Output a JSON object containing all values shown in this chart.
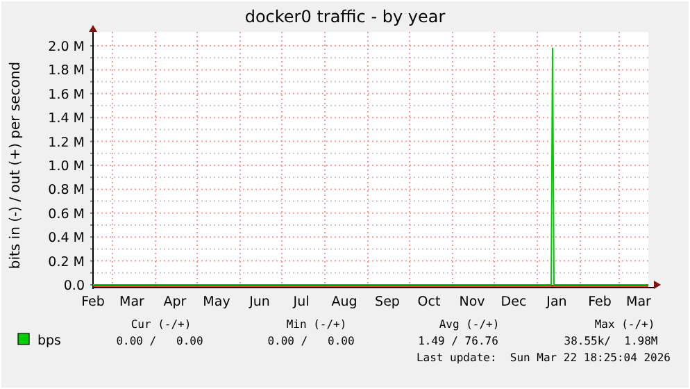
{
  "chart_data": {
    "type": "line",
    "title": "docker0 traffic - by year",
    "ylabel": "bits in (-) / out (+) per second",
    "x": [
      "2025-02-15",
      "2025-06-01",
      "2025-10-01",
      "2026-01-11",
      "2026-01-12",
      "2026-01-13",
      "2026-03-22"
    ],
    "series": [
      {
        "name": "bps",
        "color": "#00cc00",
        "values": [
          0,
          0,
          0,
          0,
          1980000,
          0,
          0
        ]
      }
    ],
    "xlim": [
      "2025-02-15",
      "2026-03-22"
    ],
    "xticks": [
      {
        "value": "2025-02-15",
        "label": "Feb"
      },
      {
        "value": "2025-03-01",
        "label": null
      },
      {
        "value": "2025-03-15",
        "label": "Mar"
      },
      {
        "value": "2025-04-01",
        "label": null
      },
      {
        "value": "2025-04-15",
        "label": "Apr"
      },
      {
        "value": "2025-05-01",
        "label": null
      },
      {
        "value": "2025-05-15",
        "label": "May"
      },
      {
        "value": "2025-06-01",
        "label": null
      },
      {
        "value": "2025-06-15",
        "label": "Jun"
      },
      {
        "value": "2025-07-01",
        "label": null
      },
      {
        "value": "2025-07-15",
        "label": "Jul"
      },
      {
        "value": "2025-08-01",
        "label": null
      },
      {
        "value": "2025-08-15",
        "label": "Aug"
      },
      {
        "value": "2025-09-01",
        "label": null
      },
      {
        "value": "2025-09-15",
        "label": "Sep"
      },
      {
        "value": "2025-10-01",
        "label": null
      },
      {
        "value": "2025-10-15",
        "label": "Oct"
      },
      {
        "value": "2025-11-01",
        "label": null
      },
      {
        "value": "2025-11-15",
        "label": "Nov"
      },
      {
        "value": "2025-12-01",
        "label": null
      },
      {
        "value": "2025-12-15",
        "label": "Dec"
      },
      {
        "value": "2026-01-01",
        "label": null
      },
      {
        "value": "2026-01-15",
        "label": "Jan"
      },
      {
        "value": "2026-02-01",
        "label": null
      },
      {
        "value": "2026-02-15",
        "label": "Feb"
      },
      {
        "value": "2026-03-01",
        "label": null
      },
      {
        "value": "2026-03-15",
        "label": "Mar"
      }
    ],
    "ylim": [
      0,
      2000000
    ],
    "yticks": [
      {
        "value": 0,
        "label": "0.0"
      },
      {
        "value": 100000,
        "label": null
      },
      {
        "value": 200000,
        "label": "0.2 M"
      },
      {
        "value": 300000,
        "label": null
      },
      {
        "value": 400000,
        "label": "0.4 M"
      },
      {
        "value": 500000,
        "label": null
      },
      {
        "value": 600000,
        "label": "0.6 M"
      },
      {
        "value": 700000,
        "label": null
      },
      {
        "value": 800000,
        "label": "0.8 M"
      },
      {
        "value": 900000,
        "label": null
      },
      {
        "value": 1000000,
        "label": "1.0 M"
      },
      {
        "value": 1100000,
        "label": null
      },
      {
        "value": 1200000,
        "label": "1.2 M"
      },
      {
        "value": 1300000,
        "label": null
      },
      {
        "value": 1400000,
        "label": "1.4 M"
      },
      {
        "value": 1500000,
        "label": null
      },
      {
        "value": 1600000,
        "label": "1.6 M"
      },
      {
        "value": 1700000,
        "label": null
      },
      {
        "value": 1800000,
        "label": "1.8 M"
      },
      {
        "value": 1900000,
        "label": null
      },
      {
        "value": 2000000,
        "label": "2.0 M"
      }
    ],
    "grid": true,
    "legend": "bottom",
    "ref_lines": [
      {
        "axis": "y",
        "value": 0,
        "color": "#ff0000"
      }
    ],
    "annotations": [
      "Cur (-/+)",
      "Min (-/+)",
      "Avg (-/+)",
      "Max (-/+)",
      "0.00 /   0.00",
      "0.00 /   0.00",
      "1.49 / 76.76",
      "38.55k/  1.98M",
      "Last update:  Sun Mar 22 18:25:04 2026"
    ]
  }
}
